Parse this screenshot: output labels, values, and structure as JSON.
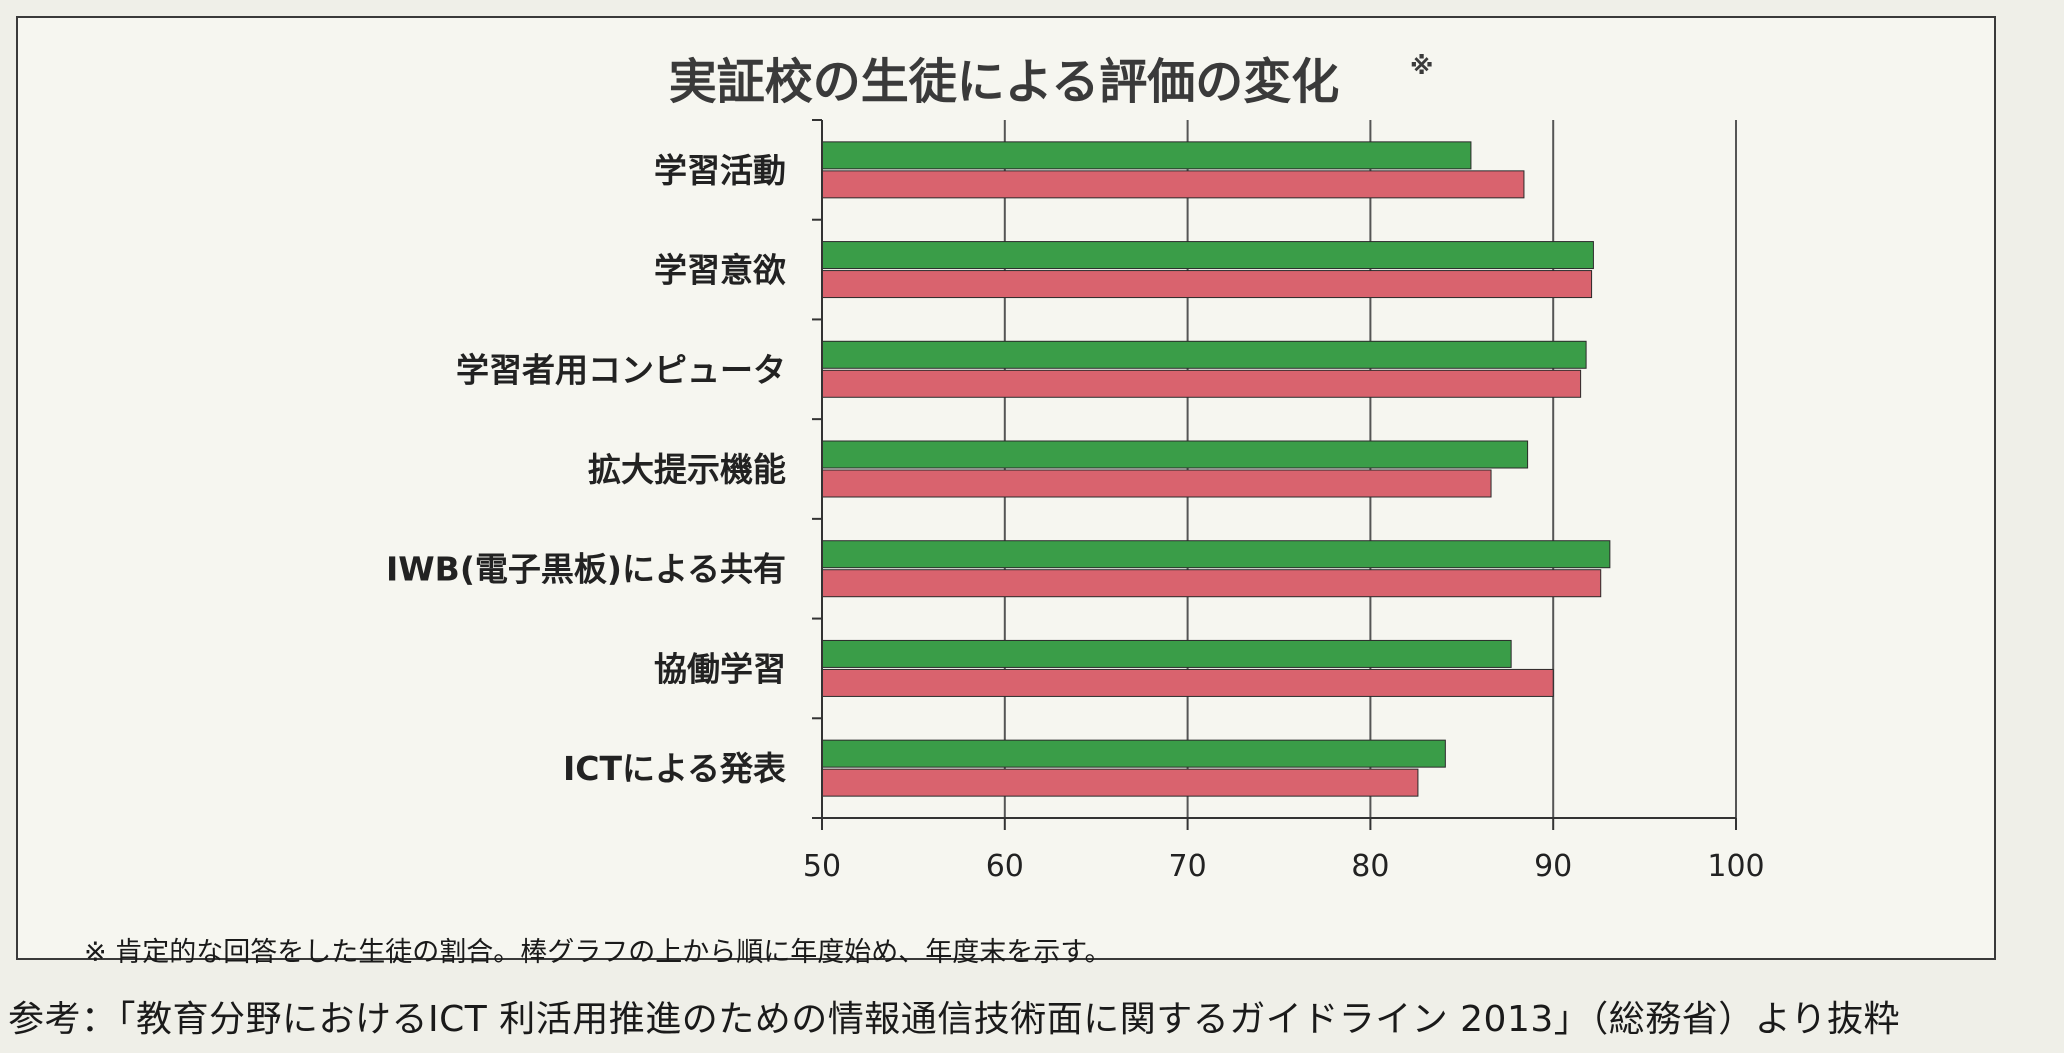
{
  "chart_data": {
    "type": "bar",
    "orientation": "horizontal",
    "title": "実証校の生徒による評価の変化",
    "title_mark": "※",
    "categories": [
      "学習活動",
      "学習意欲",
      "学習者用コンピュータ",
      "拡大提示機能",
      "IWB(電子黒板)による共有",
      "協働学習",
      "ICTによる発表"
    ],
    "series": [
      {
        "color": "#3a9d48",
        "values": [
          85.5,
          92.2,
          91.8,
          88.6,
          93.1,
          87.7,
          84.1
        ]
      },
      {
        "color": "#d9636e",
        "values": [
          88.4,
          92.1,
          91.5,
          86.6,
          92.6,
          90.0,
          82.6
        ]
      }
    ],
    "xlim": [
      50,
      100
    ],
    "xticks": [
      50,
      60,
      70,
      80,
      90,
      100
    ],
    "grid": true,
    "legend": "none"
  },
  "footnote": "※ 肯定的な回答をした生徒の割合。棒グラフの上から順に年度始め、年度末を示す。",
  "source": "参考：「教育分野におけるICT 利活用推進のための情報通信技術面に関するガイドライン 2013」（総務省）より抜粋"
}
